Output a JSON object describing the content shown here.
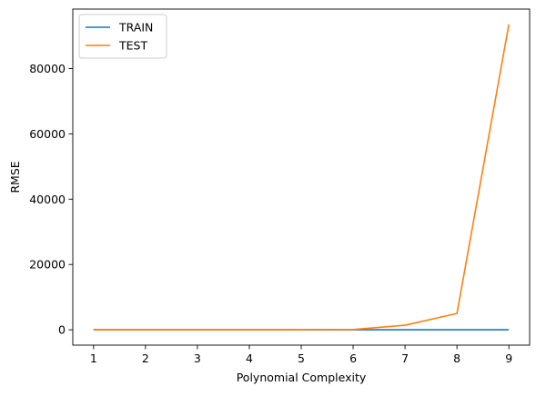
{
  "chart_data": {
    "type": "line",
    "title": "",
    "xlabel": "Polynomial Complexity",
    "ylabel": "RMSE",
    "x": [
      1,
      2,
      3,
      4,
      5,
      6,
      7,
      8,
      9
    ],
    "xlim": [
      0.6,
      9.4
    ],
    "ylim": [
      -4700,
      98200
    ],
    "xticks": [
      "1",
      "2",
      "3",
      "4",
      "5",
      "6",
      "7",
      "8",
      "9"
    ],
    "yticks": [
      {
        "value": 0,
        "label": "0"
      },
      {
        "value": 20000,
        "label": "20000"
      },
      {
        "value": 40000,
        "label": "40000"
      },
      {
        "value": 60000,
        "label": "60000"
      },
      {
        "value": 80000,
        "label": "80000"
      }
    ],
    "grid": false,
    "legend_position": "top-left",
    "series": [
      {
        "name": "TRAIN",
        "color": "#1f77b4",
        "values": [
          10,
          8,
          7,
          6,
          6,
          5,
          5,
          5,
          5
        ]
      },
      {
        "name": "TEST",
        "color": "#ff7f0e",
        "values": [
          12,
          11,
          11,
          12,
          18,
          70,
          1400,
          5000,
          93500
        ]
      }
    ]
  }
}
